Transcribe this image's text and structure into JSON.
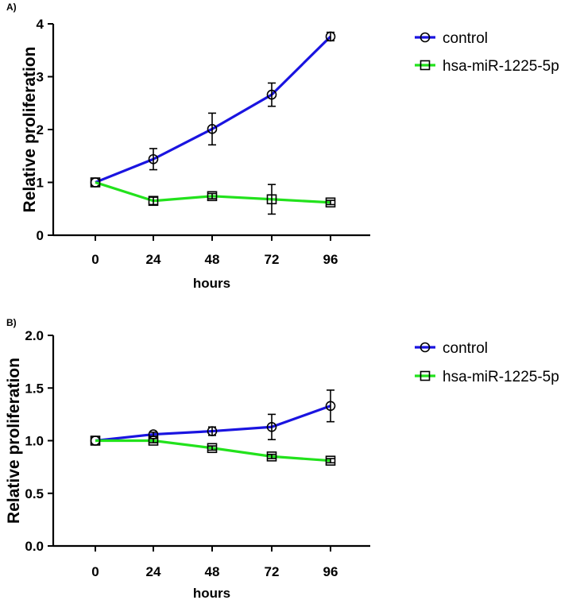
{
  "chart_data": [
    {
      "panel": "A)",
      "type": "line",
      "categories": [
        0,
        24,
        48,
        72,
        96
      ],
      "xlabel": "hours",
      "ylabel": "Relative proliferation",
      "ylim": [
        0,
        4
      ],
      "yticks": [
        0,
        1,
        2,
        3,
        4
      ],
      "ytick_labels": [
        "0",
        "1",
        "2",
        "3",
        "4"
      ],
      "legend_position": "top-right",
      "series": [
        {
          "name": "control",
          "color": "#1a14e0",
          "marker": "circle",
          "values": [
            1.0,
            1.44,
            2.01,
            2.66,
            3.76
          ],
          "err": [
            0.0,
            0.2,
            0.3,
            0.22,
            0.08
          ]
        },
        {
          "name": "hsa-miR-1225-5p",
          "color": "#22e21c",
          "marker": "square",
          "values": [
            1.0,
            0.65,
            0.74,
            0.68,
            0.62
          ],
          "err": [
            0.0,
            0.07,
            0.05,
            0.28,
            0.04
          ]
        }
      ]
    },
    {
      "panel": "B)",
      "type": "line",
      "categories": [
        0,
        24,
        48,
        72,
        96
      ],
      "xlabel": "hours",
      "ylabel": "Relative proliferation",
      "ylim": [
        0,
        2
      ],
      "yticks": [
        0,
        0.5,
        1.0,
        1.5,
        2.0
      ],
      "ytick_labels": [
        "0.0",
        "0.5",
        "1.0",
        "1.5",
        "2.0"
      ],
      "legend_position": "top-right",
      "series": [
        {
          "name": "control",
          "color": "#1a14e0",
          "marker": "circle",
          "values": [
            1.0,
            1.06,
            1.09,
            1.13,
            1.33
          ],
          "err": [
            0.0,
            0.02,
            0.04,
            0.12,
            0.15
          ]
        },
        {
          "name": "hsa-miR-1225-5p",
          "color": "#22e21c",
          "marker": "square",
          "values": [
            1.0,
            1.0,
            0.93,
            0.85,
            0.81
          ],
          "err": [
            0.0,
            0.02,
            0.02,
            0.02,
            0.02
          ]
        }
      ]
    }
  ]
}
